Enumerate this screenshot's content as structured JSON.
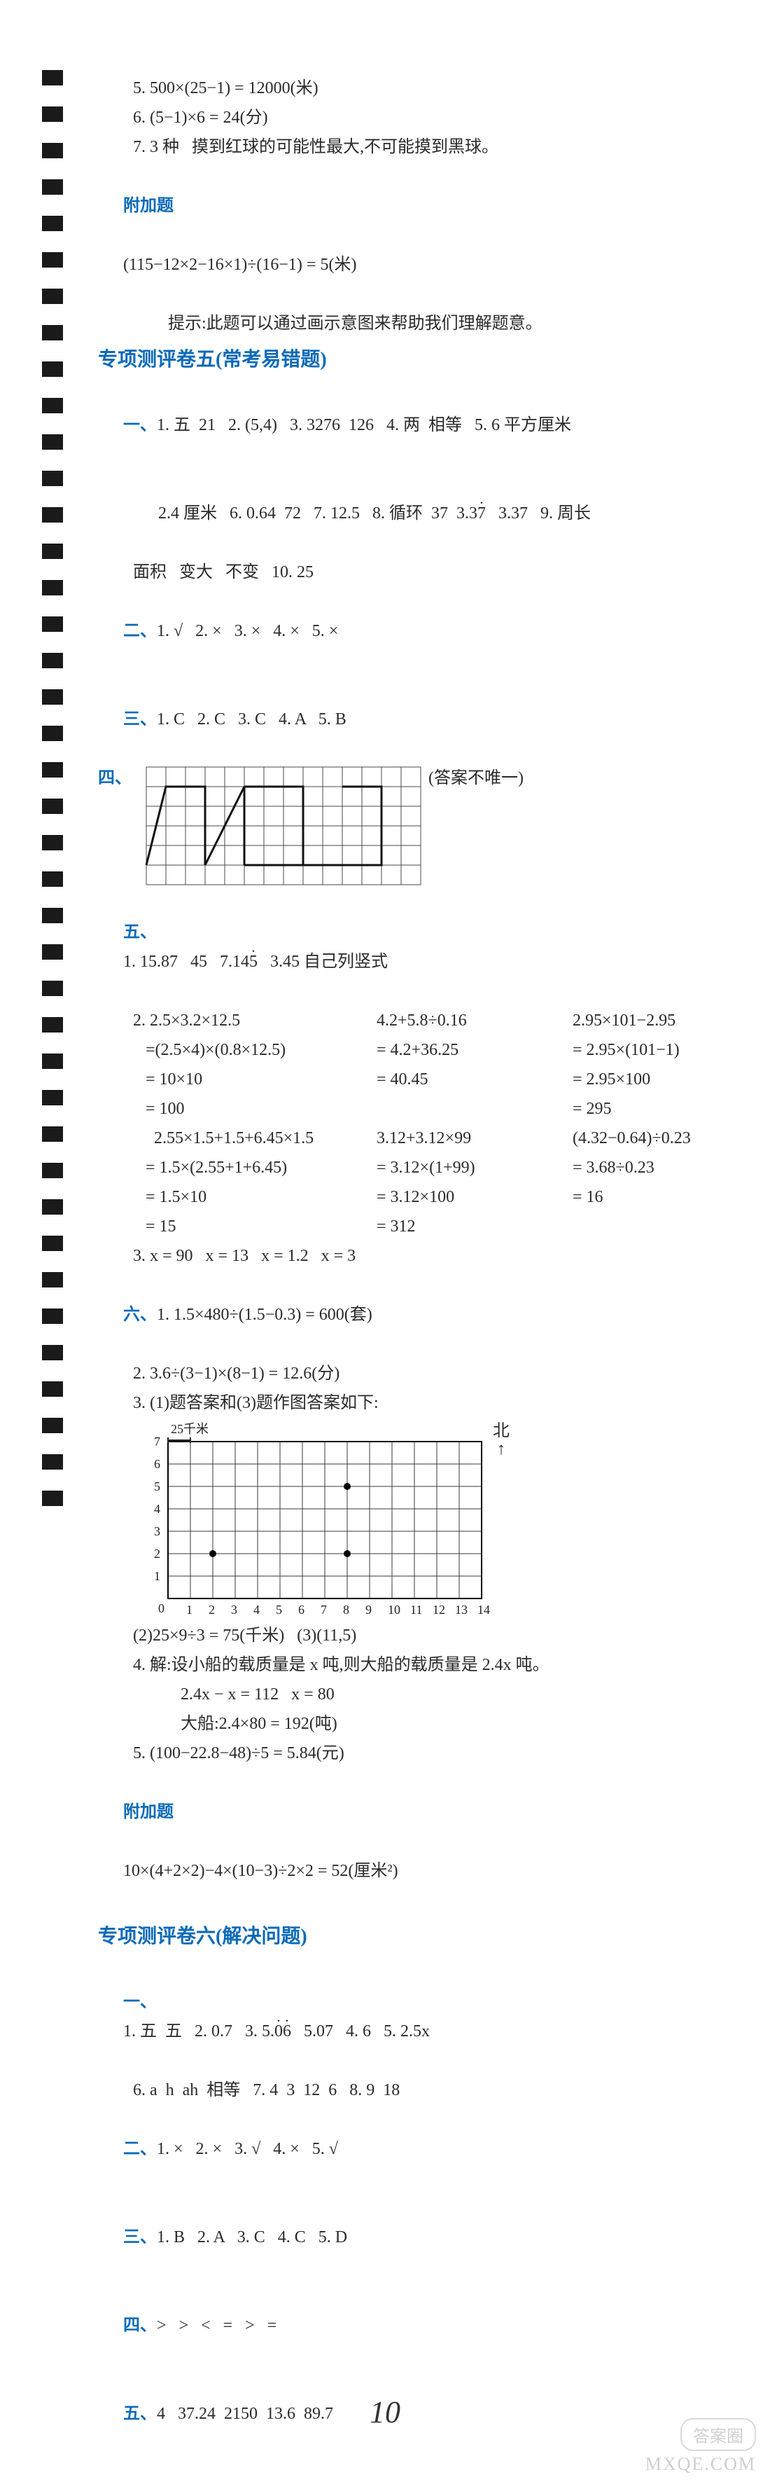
{
  "top": {
    "l5": "5. 500×(25−1) = 12000(米)",
    "l6": "6. (5−1)×6 = 24(分)",
    "l7": "7. 3 种   摸到红球的可能性最大,不可能摸到黑球。",
    "bonus_label": "附加题",
    "bonus1": "(115−12×2−16×1)÷(16−1) = 5(米)",
    "bonus2": "提示:此题可以通过画示意图来帮助我们理解题意。"
  },
  "sec5": {
    "title": "专项测评卷五(常考易错题)",
    "q1_label": "一、",
    "q1a": "1. 五  21   2. (5,4)   3. 3276  126   4. 两  相等   5. 6 平方厘米",
    "q1b": "2.4 厘米   6. 0.64  72   7. 12.5   8. 循环  37  3.3",
    "q1b_dot": "7",
    "q1b_tail": "   3.37   9. 周长",
    "q1c": "面积   变大   不变   10. 25",
    "q2_label": "二、",
    "q2": "1. √   2. ×   3. ×   4. ×   5. ×",
    "q3_label": "三、",
    "q3": "1. C   2. C   3. C   4. A   5. B",
    "q4_label": "四、",
    "q4_note": "(答案不唯一)",
    "grid": {
      "cols": 14,
      "rows": 6,
      "cell": 28,
      "stroke": "#4a4a4a",
      "shapes": [
        {
          "type": "poly",
          "pts": [
            [
              0,
              5
            ],
            [
              1,
              1
            ],
            [
              3,
              1
            ],
            [
              3,
              5
            ]
          ]
        },
        {
          "type": "poly",
          "pts": [
            [
              3,
              5
            ],
            [
              5,
              1
            ],
            [
              5,
              5
            ]
          ]
        },
        {
          "type": "poly",
          "pts": [
            [
              5,
              1
            ],
            [
              8,
              1
            ],
            [
              8,
              5
            ],
            [
              5,
              5
            ]
          ]
        },
        {
          "type": "poly",
          "pts": [
            [
              8,
              1
            ],
            [
              8,
              5
            ],
            [
              12,
              5
            ]
          ]
        },
        {
          "type": "poly",
          "pts": [
            [
              10,
              1
            ],
            [
              12,
              1
            ],
            [
              12,
              5
            ],
            [
              10,
              5
            ]
          ]
        }
      ]
    },
    "q5_label": "五、",
    "q5_l1a": "1. 15.87   45   7.14",
    "q5_l1_dot": "5",
    "q5_l1b": "   3.45 自己列竖式",
    "q5_l2": "2. 2.5×3.2×12.5",
    "calc": {
      "r1": {
        "a": "   =(2.5×4)×(0.8×12.5)",
        "b": "   4.2+5.8÷0.16",
        "c": "   2.95×101−2.95"
      },
      "r2": {
        "a": "   = 10×10",
        "b": "   = 4.2+36.25",
        "c": "   = 2.95×(101−1)"
      },
      "r3": {
        "a": "   = 100",
        "b": "   = 40.45",
        "c": "   = 2.95×100"
      },
      "r4": {
        "a": "",
        "b": "",
        "c": "   = 295"
      },
      "r5": {
        "a": "     2.55×1.5+1.5+6.45×1.5",
        "b": "   3.12+3.12×99",
        "c": "   (4.32−0.64)÷0.23"
      },
      "r6": {
        "a": "   = 1.5×(2.55+1+6.45)",
        "b": "   = 3.12×(1+99)",
        "c": "   = 3.68÷0.23"
      },
      "r7": {
        "a": "   = 1.5×10",
        "b": "   = 3.12×100",
        "c": "   = 16"
      },
      "r8": {
        "a": "   = 15",
        "b": "   = 312",
        "c": ""
      }
    },
    "q5_l3": "3. x = 90   x = 13   x = 1.2   x = 3",
    "q6_label": "六、",
    "q6_1": "1. 1.5×480÷(1.5−0.3) = 600(套)",
    "q6_2": "2. 3.6÷(3−1)×(8−1) = 12.6(分)",
    "q6_3": "3. (1)题答案和(3)题作图答案如下:",
    "chart": {
      "origin_label": "0",
      "x_ticks": [
        "1",
        "2",
        "3",
        "4",
        "5",
        "6",
        "7",
        "8",
        "9",
        "10",
        "11",
        "12",
        "13",
        "14"
      ],
      "y_ticks": [
        "1",
        "2",
        "3",
        "4",
        "5",
        "6",
        "7"
      ],
      "scale_label": "25千米",
      "north_label": "北",
      "cols": 14,
      "rows": 7,
      "cell": 32,
      "grid_color": "#3a3a3a",
      "points": [
        {
          "x": 2,
          "y": 2
        },
        {
          "x": 8,
          "y": 2
        },
        {
          "x": 8,
          "y": 5
        }
      ],
      "point_color": "#000000"
    },
    "q6_32": "(2)25×9÷3 = 75(千米)   (3)(11,5)",
    "q6_4a": "4. 解:设小船的载质量是 x 吨,则大船的载质量是 2.4x 吨。",
    "q6_4b": "   2.4x − x = 112   x = 80",
    "q6_4c": "   大船:2.4×80 = 192(吨)",
    "q6_5": "5. (100−22.8−48)÷5 = 5.84(元)",
    "bonus_label": "附加题",
    "bonus": "10×(4+2×2)−4×(10−3)÷2×2 = 52(厘米²)"
  },
  "sec6": {
    "title": "专项测评卷六(解决问题)",
    "q1_label": "一、",
    "q1a_pre": "1. 五  五   2. 0.7   3. 5.",
    "q1a_dot1": "0",
    "q1a_dot2": "6",
    "q1a_mid": "   5.07   4. 6   5. 2.5x",
    "q1b": "6. a  h  ah  相等   7. 4  3  12  6   8. 9  18",
    "q2_label": "二、",
    "q2": "1. ×   2. ×   3. √   4. ×   5. √",
    "q3_label": "三、",
    "q3": "1. B   2. A   3. C   4. C   5. D",
    "q4_label": "四、",
    "q4": ">   >   <   =   >   =",
    "q5_label": "五、",
    "q5": "4   37.24  2150  13.6  89.7"
  },
  "page_number": "10",
  "watermark_site": "MXQE.COM",
  "watermark_badge": "答案圈"
}
